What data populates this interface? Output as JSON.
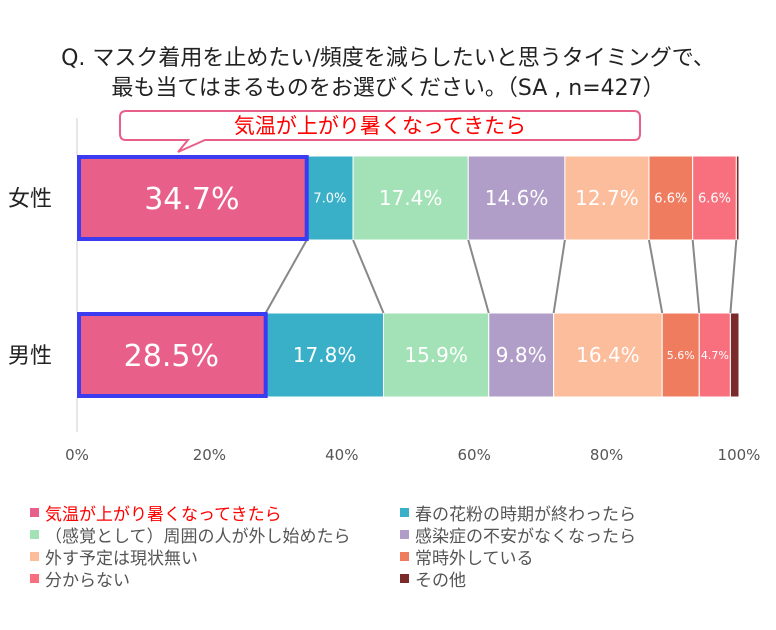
{
  "title": {
    "line1": "Q. マスク着用を止めたい/頻度を減らしたいと思うタイミングで、",
    "line2": "最も当てはまるものをお選びください。（SA , n=427）"
  },
  "callout": {
    "text": "気温が上がり暑くなってきたら",
    "color": "#ff0000"
  },
  "chart_data": {
    "type": "bar",
    "stacked": "100%",
    "orientation": "horizontal",
    "categories": [
      "女性",
      "男性"
    ],
    "series": [
      {
        "name": "気温が上がり暑くなってきたら",
        "color": "#e8608a",
        "values": [
          34.7,
          28.5
        ]
      },
      {
        "name": "春の花粉の時期が終わったら",
        "color": "#3ab0c8",
        "values": [
          7.0,
          17.8
        ]
      },
      {
        "name": "（感覚として）周囲の人が外し始めたら",
        "color": "#a2e2b6",
        "values": [
          17.4,
          15.9
        ]
      },
      {
        "name": "感染症の不安がなくなったら",
        "color": "#b09ec8",
        "values": [
          14.6,
          9.8
        ]
      },
      {
        "name": "外す予定は現状無い",
        "color": "#fcbd9c",
        "values": [
          12.7,
          16.4
        ]
      },
      {
        "name": "常時外している",
        "color": "#f07c60",
        "values": [
          6.6,
          5.6
        ]
      },
      {
        "name": "分からない",
        "color": "#f8707e",
        "values": [
          6.6,
          4.7
        ]
      },
      {
        "name": "その他",
        "color": "#7a2a2a",
        "values": [
          0.4,
          1.3
        ]
      }
    ],
    "data_labels": [
      [
        "34.7%",
        "7.0%",
        "17.4%",
        "14.6%",
        "12.7%",
        "6.6%",
        "6.6%",
        ""
      ],
      [
        "28.5%",
        "17.8%",
        "15.9%",
        "9.8%",
        "16.4%",
        "5.6%",
        "4.7%",
        ""
      ]
    ],
    "xticks": [
      "0%",
      "20%",
      "40%",
      "60%",
      "80%",
      "100%"
    ],
    "xlim": [
      0,
      100
    ],
    "highlight_series": 0,
    "highlight_color": "#3b3bf0",
    "series_lines": true,
    "legend_position": "bottom"
  }
}
